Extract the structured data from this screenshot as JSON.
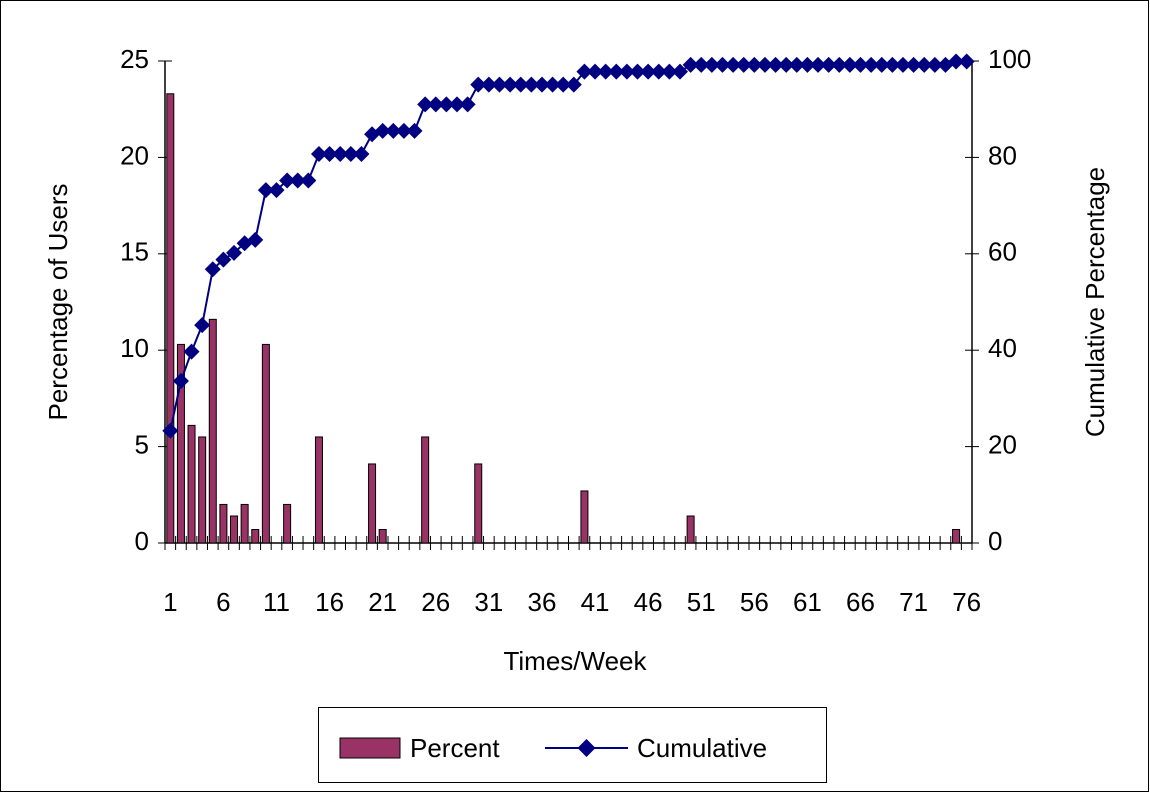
{
  "chart_data": {
    "type": "bar-line",
    "x_label": "Times/Week",
    "y_label": "Percentage of Users",
    "y2_label": "Cumulative Percentage",
    "categories": [
      "1",
      null,
      null,
      null,
      null,
      "6",
      null,
      null,
      null,
      null,
      "11",
      null,
      null,
      null,
      null,
      "16",
      null,
      null,
      null,
      null,
      "21",
      null,
      null,
      null,
      null,
      "26",
      null,
      null,
      null,
      null,
      "31",
      null,
      null,
      null,
      null,
      "36",
      null,
      null,
      null,
      null,
      "41",
      null,
      null,
      null,
      null,
      "46",
      null,
      null,
      null,
      null,
      "51",
      null,
      null,
      null,
      null,
      "56",
      null,
      null,
      null,
      null,
      "61",
      null,
      null,
      null,
      null,
      "66",
      null,
      null,
      null,
      null,
      "71",
      null,
      null,
      null,
      null,
      "76"
    ],
    "series": [
      {
        "name": "Percent",
        "type": "bar",
        "color": "#993366",
        "values": [
          23.3,
          10.3,
          6.1,
          5.5,
          11.6,
          2.0,
          1.4,
          2.0,
          0.7,
          10.3,
          0,
          2.0,
          0,
          0,
          5.5,
          0,
          0,
          0,
          0,
          4.1,
          0.7,
          0,
          0,
          0,
          5.5,
          0,
          0,
          0,
          0,
          4.1,
          0,
          0,
          0,
          0,
          0,
          0,
          0,
          0,
          0,
          2.7,
          0,
          0,
          0,
          0,
          0,
          0,
          0,
          0,
          0,
          1.4,
          0,
          0,
          0,
          0,
          0,
          0,
          0,
          0,
          0,
          0,
          0,
          0,
          0,
          0,
          0,
          0,
          0,
          0,
          0,
          0,
          0,
          0,
          0,
          0,
          0.7,
          0
        ]
      },
      {
        "name": "Cumulative",
        "type": "line",
        "axis": "y2",
        "color": "#000080",
        "values": [
          23.3,
          33.6,
          39.7,
          45.2,
          56.8,
          58.8,
          60.2,
          62.2,
          62.9,
          73.2,
          73.2,
          75.2,
          75.2,
          75.2,
          80.7,
          80.7,
          80.7,
          80.7,
          80.7,
          84.8,
          85.5,
          85.5,
          85.5,
          85.5,
          91.0,
          91.0,
          91.0,
          91.0,
          91.0,
          95.1,
          95.1,
          95.1,
          95.1,
          95.1,
          95.1,
          95.1,
          95.1,
          95.1,
          95.1,
          97.8,
          97.8,
          97.8,
          97.8,
          97.8,
          97.8,
          97.8,
          97.8,
          97.8,
          97.8,
          99.2,
          99.2,
          99.2,
          99.2,
          99.2,
          99.2,
          99.2,
          99.2,
          99.2,
          99.2,
          99.2,
          99.2,
          99.2,
          99.2,
          99.2,
          99.2,
          99.2,
          99.2,
          99.2,
          99.2,
          99.2,
          99.2,
          99.2,
          99.2,
          99.2,
          99.9,
          99.9
        ]
      }
    ],
    "ylim": [
      0,
      25
    ],
    "yticks": [
      0,
      5,
      10,
      15,
      20,
      25
    ],
    "y2lim": [
      0,
      100
    ],
    "y2ticks": [
      0,
      20,
      40,
      60,
      80,
      100
    ],
    "legend": "bottom"
  }
}
